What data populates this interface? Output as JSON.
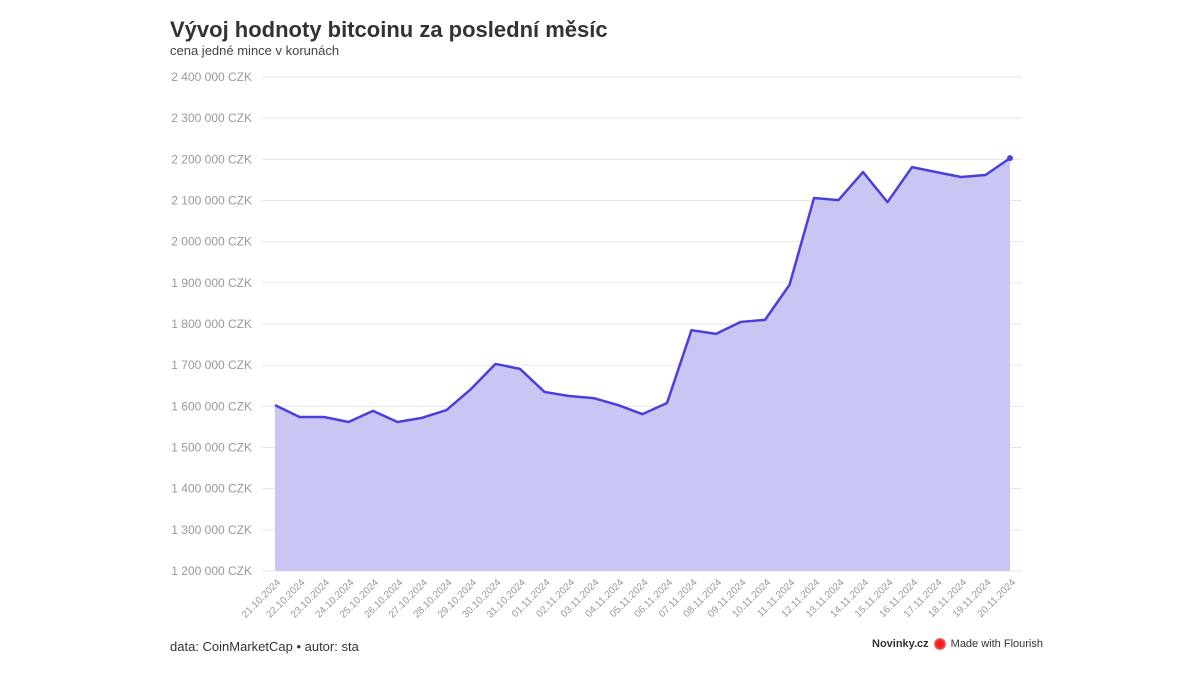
{
  "title": "Vývoj hodnoty bitcoinu za poslední měsíc",
  "subtitle": "cena jedné mince v korunách",
  "footer": {
    "source": "data: CoinMarketCap • autor: sta",
    "brand": "Novinky.cz",
    "made_with": "Made with Flourish"
  },
  "colors": {
    "line": "#4b3fdc",
    "area": "#c9c6f3",
    "grid": "#e6e6e6"
  },
  "chart_data": {
    "type": "area",
    "title": "Vývoj hodnoty bitcoinu za poslední měsíc",
    "subtitle": "cena jedné mince v korunách",
    "ylim": [
      1200000,
      2400000
    ],
    "yticks": [
      "1 200 000 CZK",
      "1 300 000 CZK",
      "1 400 000 CZK",
      "1 500 000 CZK",
      "1 600 000 CZK",
      "1 700 000 CZK",
      "1 800 000 CZK",
      "1 900 000 CZK",
      "2 000 000 CZK",
      "2 100 000 CZK",
      "2 200 000 CZK",
      "2 300 000 CZK",
      "2 400 000 CZK"
    ],
    "grid": true,
    "x": [
      "21.10.2024",
      "22.10.2024",
      "23.10.2024",
      "24.10.2024",
      "25.10.2024",
      "26.10.2024",
      "27.10.2024",
      "28.10.2024",
      "29.10.2024",
      "30.10.2024",
      "31.10.2024",
      "01.11.2024",
      "02.11.2024",
      "03.11.2024",
      "04.11.2024",
      "05.11.2024",
      "06.11.2024",
      "07.11.2024",
      "08.11.2024",
      "09.11.2024",
      "10.11.2024",
      "11.11.2024",
      "12.11.2024",
      "13.11.2024",
      "14.11.2024",
      "15.11.2024",
      "16.11.2024",
      "17.11.2024",
      "18.11.2024",
      "19.11.2024",
      "20.11.2024"
    ],
    "values": [
      1603000,
      1574000,
      1574000,
      1562000,
      1589000,
      1562000,
      1572000,
      1591000,
      1642000,
      1703000,
      1691000,
      1635000,
      1625000,
      1620000,
      1603000,
      1581000,
      1608000,
      1785000,
      1776000,
      1805000,
      1810000,
      1895000,
      2106000,
      2101000,
      2169000,
      2096000,
      2181000,
      2169000,
      2157000,
      2162000,
      2203000
    ]
  }
}
